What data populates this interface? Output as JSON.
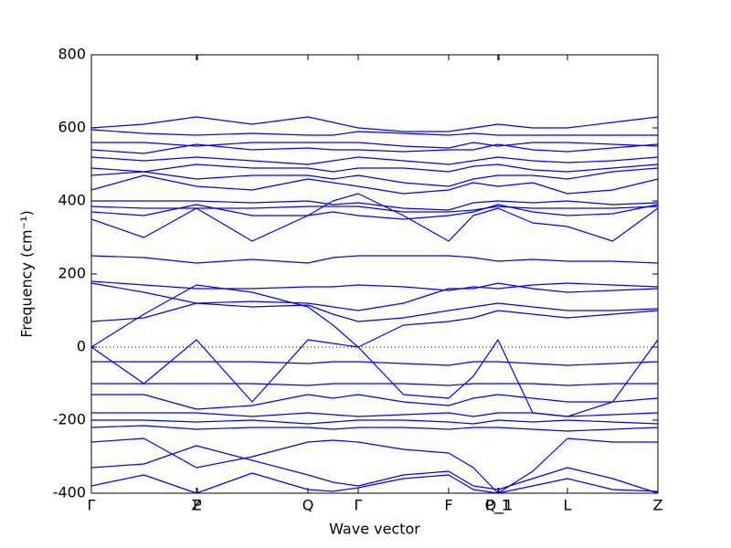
{
  "chart_data": {
    "type": "line",
    "xlabel": "Wave vector",
    "ylabel": "Frequency (cm⁻¹)",
    "color": "#0000ff",
    "x": [
      0,
      0.575,
      1.15,
      1.76,
      2.37,
      2.645,
      2.92,
      3.415,
      3.91,
      4.18,
      4.45,
      4.83,
      5.21,
      5.705,
      6.2
    ],
    "xlim": [
      0,
      6.2
    ],
    "xticks": [
      {
        "value": 0,
        "label": "Γ"
      },
      {
        "value": 1.15,
        "label": "Z"
      },
      {
        "value": 1.16,
        "label": "P"
      },
      {
        "value": 2.37,
        "label": "Q"
      },
      {
        "value": 2.92,
        "label": "Γ"
      },
      {
        "value": 3.91,
        "label": "F"
      },
      {
        "value": 4.45,
        "label": "P_1"
      },
      {
        "value": 4.46,
        "label": "Q_1"
      },
      {
        "value": 5.21,
        "label": "L"
      },
      {
        "value": 6.2,
        "label": "Z"
      }
    ],
    "ylim": [
      -400,
      800
    ],
    "yticks": [
      -400,
      -200,
      0,
      200,
      400,
      600,
      800
    ],
    "zero_line": true,
    "series": [
      {
        "values": [
          600,
          610,
          630,
          610,
          630,
          615,
          600,
          590,
          590,
          600,
          610,
          600,
          600,
          615,
          630
        ]
      },
      {
        "values": [
          595,
          585,
          580,
          585,
          580,
          580,
          590,
          585,
          580,
          585,
          580,
          580,
          580,
          580,
          580
        ]
      },
      {
        "values": [
          560,
          560,
          550,
          560,
          560,
          560,
          560,
          550,
          545,
          560,
          550,
          560,
          560,
          555,
          550
        ]
      },
      {
        "values": [
          540,
          530,
          555,
          540,
          545,
          540,
          540,
          535,
          540,
          540,
          555,
          540,
          535,
          545,
          555
        ]
      },
      {
        "values": [
          520,
          510,
          520,
          510,
          500,
          510,
          520,
          510,
          500,
          510,
          520,
          510,
          505,
          510,
          520
        ]
      },
      {
        "values": [
          490,
          480,
          500,
          490,
          490,
          480,
          490,
          490,
          480,
          495,
          500,
          485,
          480,
          490,
          500
        ]
      },
      {
        "values": [
          470,
          480,
          460,
          470,
          470,
          460,
          470,
          450,
          440,
          460,
          470,
          470,
          460,
          480,
          490
        ]
      },
      {
        "values": [
          430,
          470,
          440,
          430,
          460,
          450,
          440,
          420,
          430,
          450,
          440,
          450,
          420,
          430,
          460
        ]
      },
      {
        "values": [
          400,
          400,
          400,
          395,
          400,
          390,
          395,
          380,
          375,
          395,
          400,
          395,
          400,
          390,
          395
        ]
      },
      {
        "values": [
          385,
          380,
          380,
          380,
          385,
          385,
          385,
          370,
          370,
          375,
          385,
          380,
          380,
          380,
          385
        ]
      },
      {
        "values": [
          370,
          360,
          390,
          360,
          360,
          370,
          360,
          350,
          360,
          370,
          390,
          370,
          360,
          365,
          390
        ]
      },
      {
        "values": [
          350,
          300,
          380,
          290,
          360,
          400,
          420,
          360,
          290,
          360,
          380,
          340,
          330,
          290,
          380
        ]
      },
      {
        "values": [
          250,
          245,
          230,
          240,
          230,
          245,
          250,
          250,
          250,
          245,
          235,
          240,
          235,
          235,
          230
        ]
      },
      {
        "values": [
          180,
          170,
          160,
          160,
          165,
          165,
          170,
          165,
          155,
          165,
          160,
          170,
          175,
          170,
          165
        ]
      },
      {
        "values": [
          175,
          150,
          120,
          125,
          120,
          110,
          100,
          120,
          160,
          160,
          175,
          160,
          150,
          155,
          160
        ]
      },
      {
        "values": [
          70,
          80,
          120,
          110,
          115,
          90,
          70,
          80,
          100,
          110,
          120,
          110,
          100,
          100,
          105
        ]
      },
      {
        "values": [
          0,
          90,
          170,
          150,
          110,
          60,
          0,
          60,
          70,
          80,
          100,
          90,
          80,
          90,
          100
        ]
      },
      {
        "values": [
          0,
          -100,
          20,
          -150,
          20,
          10,
          0,
          -130,
          -140,
          -80,
          20,
          -180,
          -190,
          -150,
          20
        ]
      },
      {
        "values": [
          -40,
          -40,
          -40,
          -40,
          -45,
          -40,
          -40,
          -45,
          -50,
          -40,
          -40,
          -45,
          -50,
          -45,
          -40
        ]
      },
      {
        "values": [
          -100,
          -100,
          -100,
          -100,
          -105,
          -100,
          -100,
          -100,
          -105,
          -100,
          -100,
          -100,
          -105,
          -100,
          -100
        ]
      },
      {
        "values": [
          -130,
          -130,
          -170,
          -160,
          -130,
          -140,
          -130,
          -150,
          -160,
          -140,
          -130,
          -140,
          -150,
          -150,
          -140
        ]
      },
      {
        "values": [
          -180,
          -180,
          -180,
          -190,
          -180,
          -185,
          -190,
          -185,
          -180,
          -190,
          -180,
          -180,
          -190,
          -185,
          -180
        ]
      },
      {
        "values": [
          -200,
          -200,
          -205,
          -200,
          -210,
          -205,
          -200,
          -200,
          -205,
          -210,
          -200,
          -205,
          -200,
          -205,
          -210
        ]
      },
      {
        "values": [
          -220,
          -215,
          -225,
          -220,
          -220,
          -225,
          -220,
          -220,
          -225,
          -220,
          -220,
          -225,
          -230,
          -225,
          -220
        ]
      },
      {
        "values": [
          -260,
          -250,
          -330,
          -300,
          -260,
          -255,
          -260,
          -280,
          -290,
          -330,
          -400,
          -340,
          -250,
          -260,
          -260
        ]
      },
      {
        "values": [
          -330,
          -320,
          -270,
          -310,
          -350,
          -370,
          -380,
          -350,
          -340,
          -380,
          -390,
          -360,
          -330,
          -360,
          -400
        ]
      },
      {
        "values": [
          -380,
          -350,
          -400,
          -345,
          -390,
          -395,
          -385,
          -360,
          -350,
          -390,
          -400,
          -380,
          -360,
          -390,
          -395
        ]
      }
    ]
  }
}
